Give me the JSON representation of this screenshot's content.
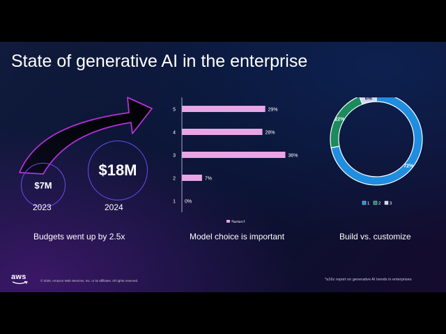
{
  "slide": {
    "title": "State of generative AI in the enterprise",
    "footer": {
      "aws_logo_text": "aws",
      "copyright": "© 2025, Amazon Web Services, Inc. or its affiliates. All rights reserved.",
      "source_note": "*a16z report on generative AI trends in enterprises"
    }
  },
  "budget": {
    "items": [
      {
        "label": "$7M",
        "year": "2023"
      },
      {
        "label": "$18M",
        "year": "2024"
      }
    ],
    "caption": "Budgets went up by 2.5x"
  },
  "model_choice": {
    "caption": "Model choice is important"
  },
  "build_customize": {
    "caption": "Build vs. customize"
  },
  "colors": {
    "arrow_stroke": "#b830d8",
    "circle_border": "#6a4cf0",
    "bar": "#e8a6e6",
    "donut_1": "#1f8ee0",
    "donut_2": "#1c8a5c",
    "donut_3": "#cfd8ee"
  },
  "chart_data": [
    {
      "type": "bar",
      "orientation": "horizontal",
      "categories": [
        "1",
        "2",
        "3",
        "4",
        "5"
      ],
      "series": [
        {
          "name": "Series1",
          "values": [
            0,
            7,
            36,
            28,
            29
          ]
        }
      ],
      "data_labels": [
        "0%",
        "7%",
        "36%",
        "28%",
        "29%"
      ],
      "xlim": [
        0,
        40
      ],
      "legend": "bottom"
    },
    {
      "type": "pie",
      "style": "donut",
      "categories": [
        "1",
        "2",
        "3"
      ],
      "values": [
        72,
        22,
        6
      ],
      "data_labels": [
        "72%",
        "22%",
        "6%"
      ],
      "legend": "bottom"
    }
  ]
}
